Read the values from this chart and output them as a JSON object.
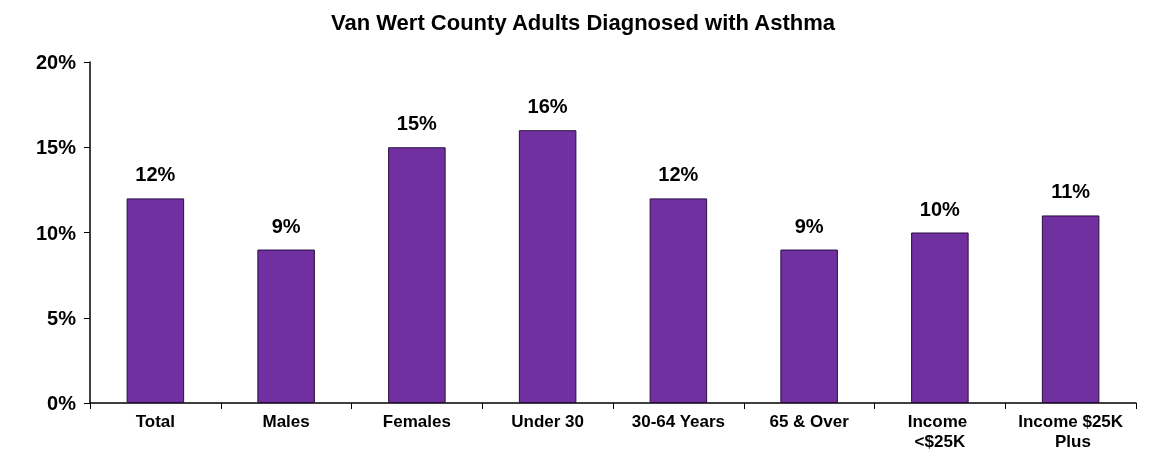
{
  "chart_data": {
    "type": "bar",
    "title": "Van Wert County Adults Diagnosed with Asthma",
    "categories": [
      "Total",
      "Males",
      "Females",
      "Under 30",
      "30-64 Years",
      "65 & Over",
      "Income <$25K",
      "Income $25K Plus"
    ],
    "values": [
      12,
      9,
      15,
      16,
      12,
      9,
      10,
      11
    ],
    "color": "#7030a0",
    "value_labels": [
      "12%",
      "9%",
      "15%",
      "16%",
      "12%",
      "9%",
      "10%",
      "11%"
    ],
    "ylim": [
      0,
      20
    ],
    "yticks": [
      {
        "value": 0,
        "label": "0%"
      },
      {
        "value": 5,
        "label": "5%"
      },
      {
        "value": 10,
        "label": "10%"
      },
      {
        "value": 15,
        "label": "15%"
      },
      {
        "value": 20,
        "label": "20%"
      }
    ]
  }
}
